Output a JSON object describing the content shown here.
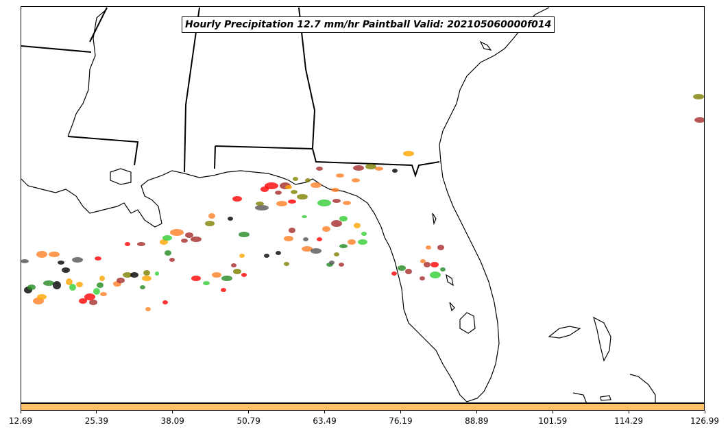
{
  "title": "Hourly Precipitation 12.7 mm/hr Paintball Valid: 202105060000f014",
  "colorbar": {
    "color": "#ffc266",
    "ticks": [
      "12.69",
      "25.39",
      "38.09",
      "50.79",
      "63.49",
      "76.19",
      "88.89",
      "101.59",
      "114.29",
      "126.99"
    ]
  },
  "map": {
    "region": "Southeastern United States and Gulf of Mexico",
    "features": [
      "coastline",
      "state-borders",
      "precipitation-paintball-blobs"
    ],
    "blob_colors": [
      "#ff0000",
      "#a52a2a",
      "#ff7f27",
      "#ffa500",
      "#228b22",
      "#32cd32",
      "#808000",
      "#000000",
      "#555555"
    ]
  }
}
